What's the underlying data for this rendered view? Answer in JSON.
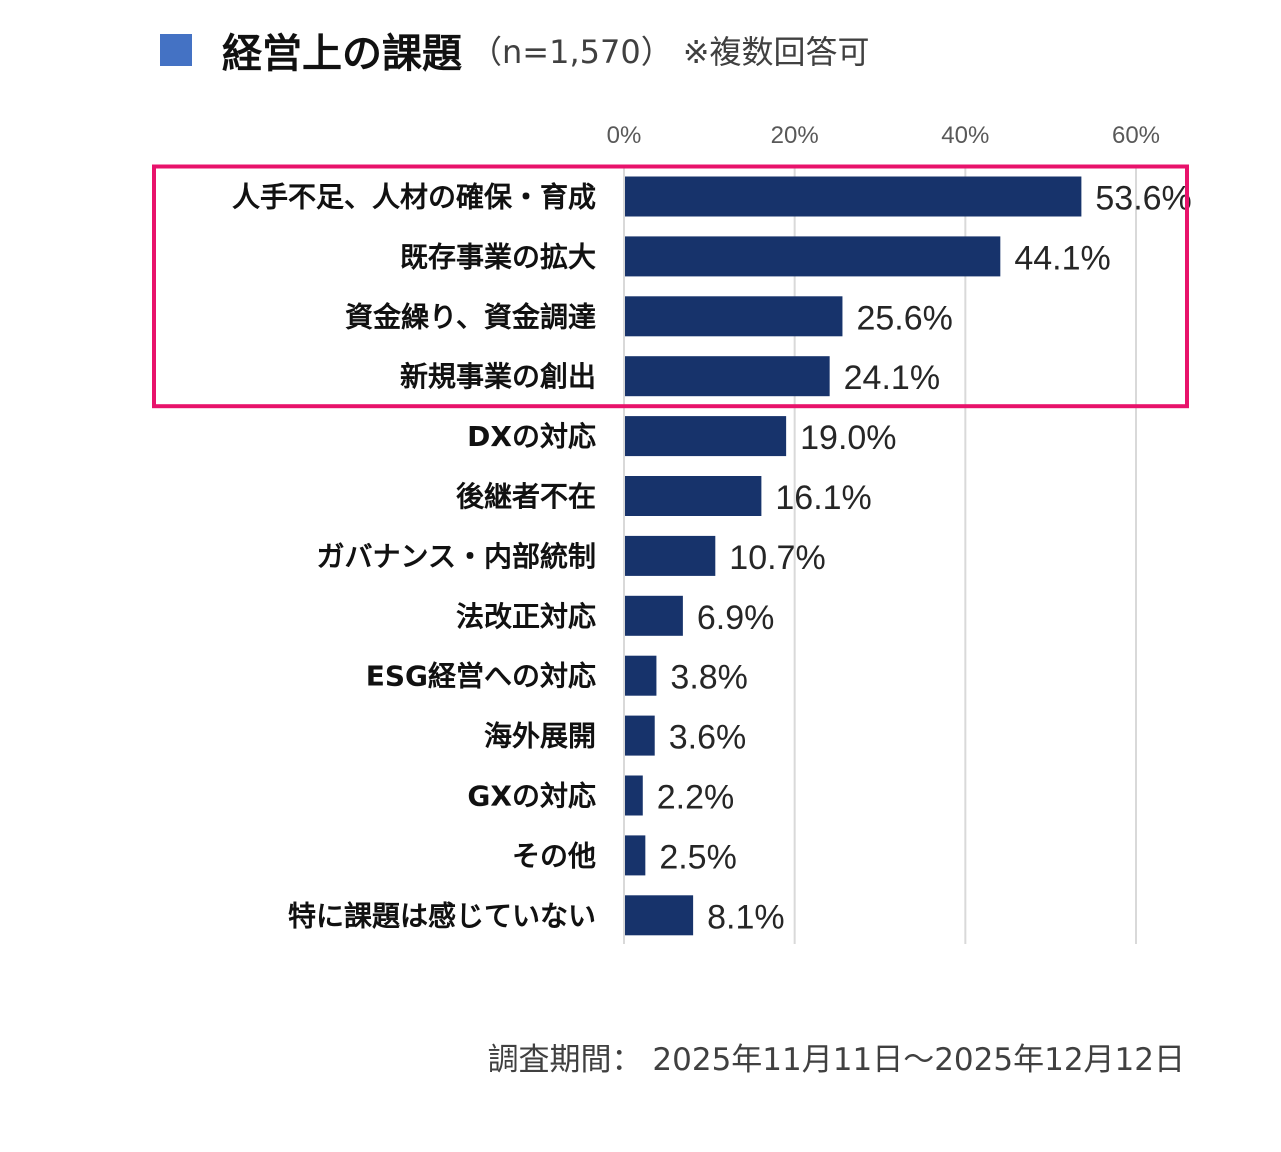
{
  "title": {
    "main": "経営上の課題",
    "sample": "（n=1,570）",
    "note": "※複数回答可"
  },
  "footer": {
    "period": "調査期間： 2025年11月11日～2025年12月12日"
  },
  "chart_data": {
    "type": "bar",
    "orientation": "horizontal",
    "title": "経営上の課題",
    "xlabel": "",
    "ylabel": "",
    "xlim": [
      0,
      60
    ],
    "ticks": [
      0,
      20,
      40,
      60
    ],
    "tick_labels": [
      "0%",
      "20%",
      "40%",
      "60%"
    ],
    "grid": true,
    "categories": [
      "人手不足、人材の確保・育成",
      "既存事業の拡大",
      "資金繰り、資金調達",
      "新規事業の創出",
      "DXの対応",
      "後継者不在",
      "ガバナンス・内部統制",
      "法改正対応",
      "ESG経営への対応",
      "海外展開",
      "GXの対応",
      "その他",
      "特に課題は感じていない"
    ],
    "values": [
      53.6,
      44.1,
      25.6,
      24.1,
      19.0,
      16.1,
      10.7,
      6.9,
      3.8,
      3.6,
      2.2,
      2.5,
      8.1
    ],
    "value_labels": [
      "53.6%",
      "44.1%",
      "25.6%",
      "24.1%",
      "19.0%",
      "16.1%",
      "10.7%",
      "6.9%",
      "3.8%",
      "3.6%",
      "2.2%",
      "2.5%",
      "8.1%"
    ],
    "highlight": {
      "from_index": 0,
      "to_index": 3
    },
    "colors": {
      "bar": "#17336B",
      "highlight_box": "#E8126B",
      "legend": "#4472C4",
      "grid": "#D9D9D9"
    }
  }
}
